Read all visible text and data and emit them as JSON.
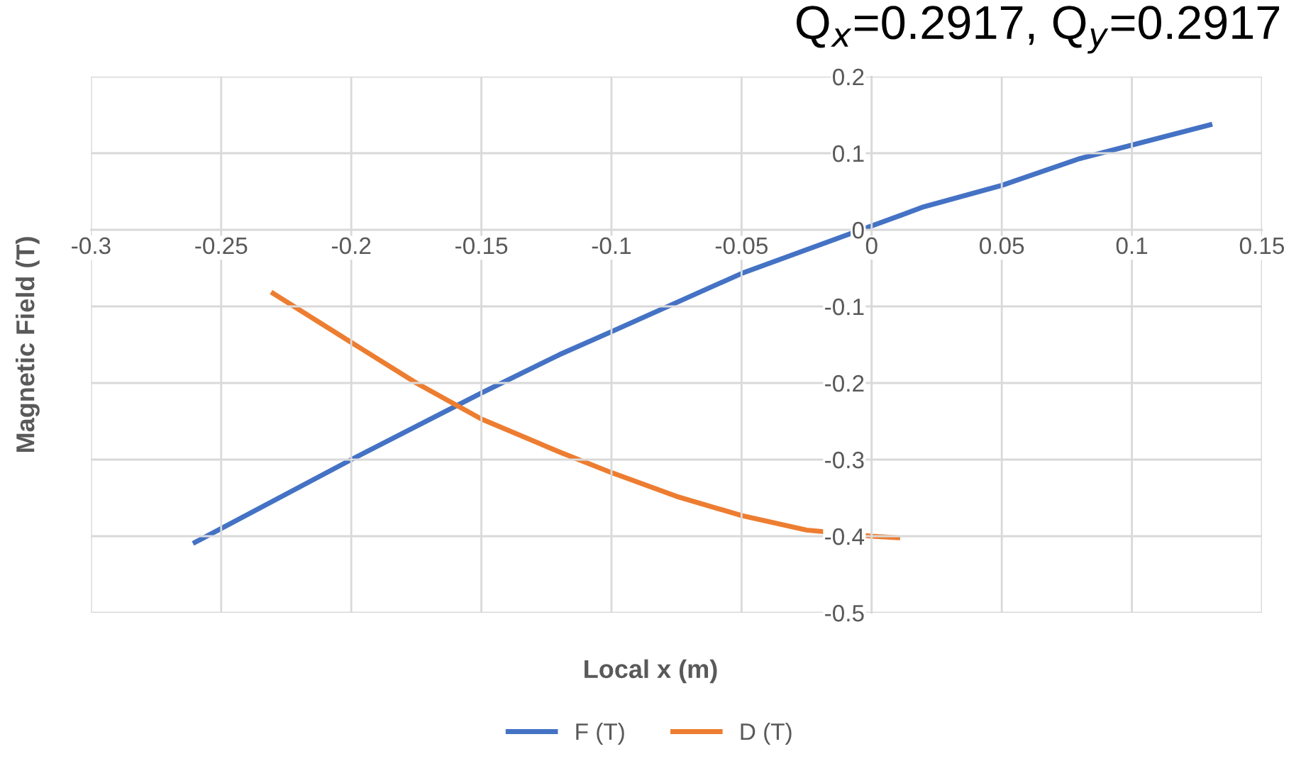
{
  "chart_data": {
    "type": "line",
    "title": "Q$_{x}$=0.2917, Q$_{y}$=0.2917",
    "xlabel": "Local x (m)",
    "ylabel": "Magnetic Field (T)",
    "series": [
      {
        "name": "F (T)",
        "color": "#4472c4",
        "x": [
          -0.26,
          -0.2,
          -0.15,
          -0.12,
          -0.1,
          -0.05,
          0,
          0.02,
          0.05,
          0.08,
          0.13
        ],
        "values": [
          -0.408,
          -0.3,
          -0.213,
          -0.163,
          -0.133,
          -0.057,
          0.005,
          0.03,
          0.058,
          0.093,
          0.137
        ]
      },
      {
        "name": "D (T)",
        "color": "#ed7d31",
        "x": [
          -0.23,
          -0.2,
          -0.175,
          -0.15,
          -0.12,
          -0.1,
          -0.075,
          -0.05,
          -0.025,
          0,
          0.01
        ],
        "values": [
          -0.083,
          -0.147,
          -0.2,
          -0.247,
          -0.29,
          -0.317,
          -0.348,
          -0.373,
          -0.392,
          -0.4,
          -0.402
        ]
      }
    ],
    "xlim": [
      -0.3,
      0.15
    ],
    "xticks": [
      -0.3,
      -0.25,
      -0.2,
      -0.15,
      -0.1,
      -0.05,
      0,
      0.05,
      0.1,
      0.15
    ],
    "ylim": [
      -0.5,
      0.2
    ],
    "yticks": [
      -0.5,
      -0.4,
      -0.3,
      -0.2,
      -0.1,
      0,
      0.1,
      0.2
    ],
    "grid": true,
    "legend": "bottom",
    "marker": "none",
    "line_style": "solid"
  }
}
